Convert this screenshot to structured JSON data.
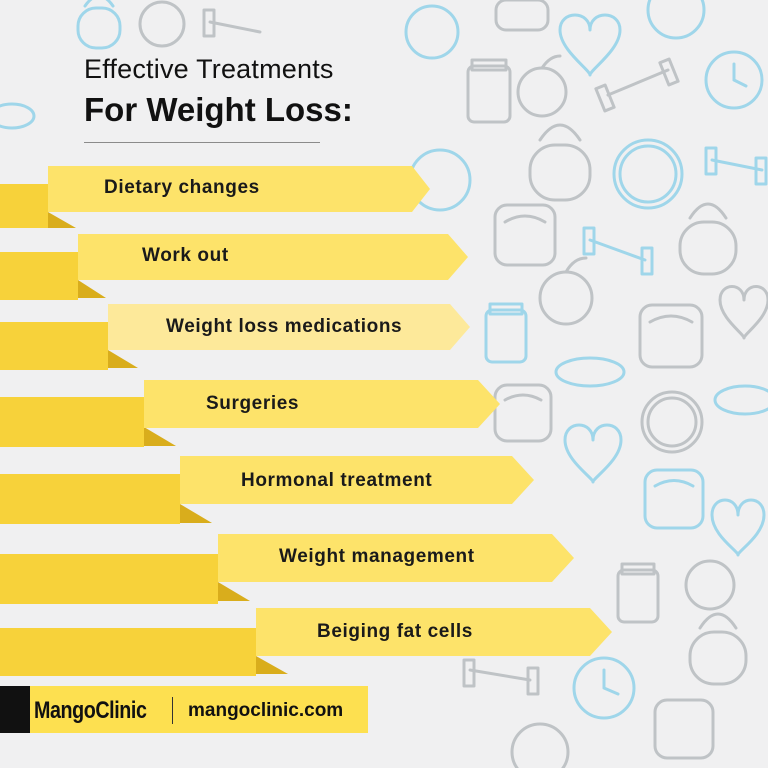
{
  "title": {
    "line1": "Effective Treatments",
    "line2": "For Weight Loss:"
  },
  "treatments": [
    {
      "label": "Dietary changes"
    },
    {
      "label": "Work out"
    },
    {
      "label": "Weight loss medications"
    },
    {
      "label": "Surgeries"
    },
    {
      "label": "Hormonal treatment"
    },
    {
      "label": "Weight management"
    },
    {
      "label": "Beiging fat cells"
    }
  ],
  "footer": {
    "brand_part1": "Mango",
    "brand_part2": "Clinic",
    "url": "mangoclinic.com"
  },
  "colors": {
    "ribbon_light": "#fde36a",
    "ribbon_dark": "#f7d23a",
    "ribbon_fold": "#d9ad1c",
    "icon_blue": "#9fd6ea",
    "icon_gray": "#bfc3c6"
  }
}
